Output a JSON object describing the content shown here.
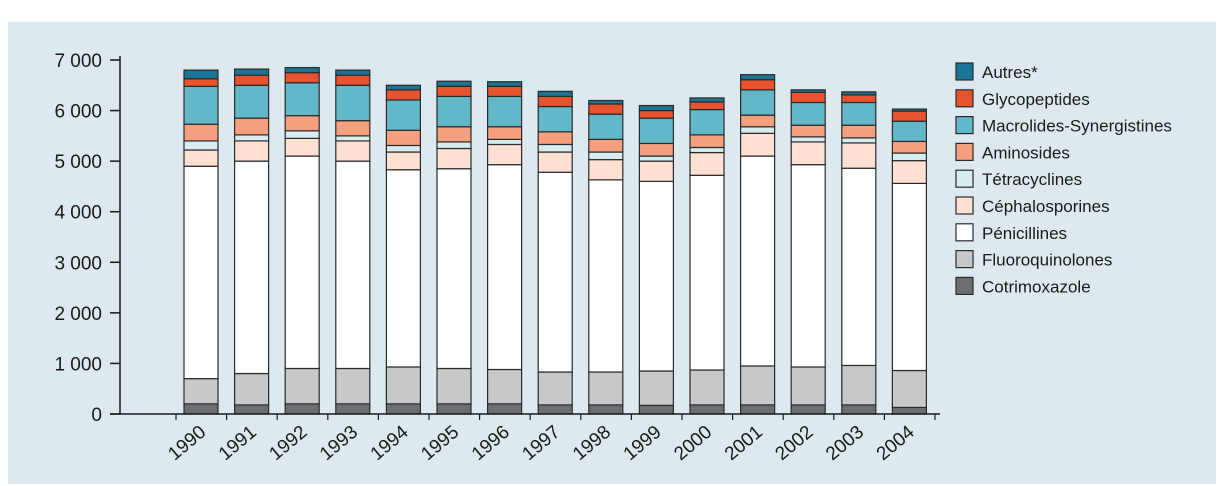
{
  "chart_data": {
    "type": "bar",
    "stacked": true,
    "categories": [
      "1990",
      "1991",
      "1992",
      "1993",
      "1994",
      "1995",
      "1996",
      "1997",
      "1998",
      "1999",
      "2000",
      "2001",
      "2002",
      "2003",
      "2004"
    ],
    "ylim": [
      0,
      7000
    ],
    "yticks": [
      0,
      1000,
      2000,
      3000,
      4000,
      5000,
      6000,
      7000
    ],
    "ytick_labels": [
      "0",
      "1 000",
      "2 000",
      "3 000",
      "4 000",
      "5 000",
      "6 000",
      "7 000"
    ],
    "grid": false,
    "legend_position": "right",
    "series": [
      {
        "name": "Cotrimoxazole",
        "color": "#6d6e71",
        "values": [
          200,
          180,
          200,
          200,
          200,
          200,
          200,
          180,
          180,
          170,
          180,
          180,
          180,
          180,
          130
        ]
      },
      {
        "name": "Fluoroquinolones",
        "color": "#c7c8ca",
        "values": [
          500,
          620,
          700,
          700,
          730,
          700,
          680,
          650,
          650,
          680,
          690,
          770,
          750,
          780,
          730
        ]
      },
      {
        "name": "Pénicillines",
        "color": "#ffffff",
        "values": [
          4200,
          4200,
          4200,
          4100,
          3900,
          3950,
          4050,
          3950,
          3800,
          3750,
          3850,
          4150,
          4000,
          3900,
          3700
        ]
      },
      {
        "name": "Céphalosporines",
        "color": "#fde0d2",
        "values": [
          320,
          400,
          350,
          400,
          350,
          400,
          400,
          400,
          400,
          400,
          450,
          450,
          450,
          500,
          450
        ]
      },
      {
        "name": "Tétracyclines",
        "color": "#d6ecee",
        "values": [
          180,
          120,
          150,
          100,
          130,
          130,
          100,
          150,
          150,
          100,
          100,
          130,
          100,
          100,
          150
        ]
      },
      {
        "name": "Aminosides",
        "color": "#f4a07f",
        "values": [
          330,
          330,
          300,
          300,
          300,
          300,
          250,
          250,
          250,
          250,
          250,
          230,
          230,
          250,
          230
        ]
      },
      {
        "name": "Macrolides-Synergistines",
        "color": "#62b8c9",
        "values": [
          750,
          650,
          650,
          700,
          600,
          600,
          600,
          500,
          500,
          500,
          500,
          500,
          450,
          450,
          400
        ]
      },
      {
        "name": "Glycopeptides",
        "color": "#e8532f",
        "values": [
          150,
          200,
          200,
          200,
          200,
          200,
          200,
          200,
          200,
          150,
          150,
          200,
          200,
          150,
          200
        ]
      },
      {
        "name": "Autres*",
        "color": "#1a7596",
        "values": [
          170,
          120,
          100,
          100,
          90,
          100,
          90,
          100,
          70,
          100,
          80,
          100,
          50,
          60,
          40
        ]
      }
    ]
  }
}
